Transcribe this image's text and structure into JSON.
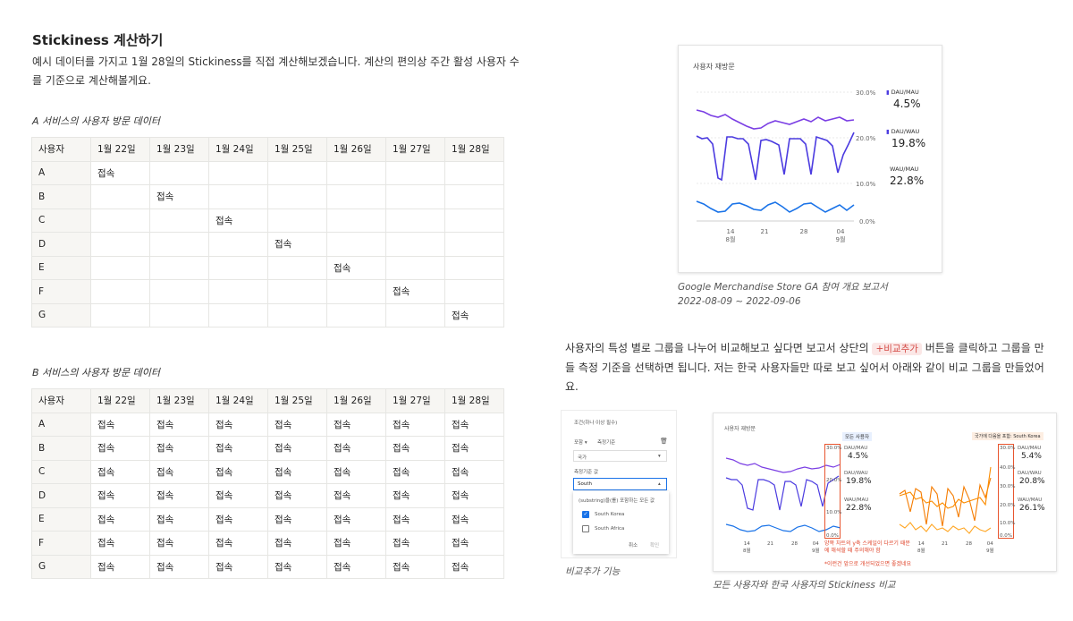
{
  "heading": "Stickiness 계산하기",
  "intro": "예시 데이터를 가지고 1월 28일의 Stickiness를 직접 계산해보겠습니다. 계산의 편의상 주간 활성 사용자 수를 기준으로 계산해볼게요.",
  "table_a": {
    "caption": "A 서비스의 사용자 방문 데이터",
    "headers": [
      "사용자",
      "1월 22일",
      "1월 23일",
      "1월 24일",
      "1월 25일",
      "1월 26일",
      "1월 27일",
      "1월 28일"
    ],
    "rows": [
      [
        "A",
        "접속",
        "",
        "",
        "",
        "",
        "",
        ""
      ],
      [
        "B",
        "",
        "접속",
        "",
        "",
        "",
        "",
        ""
      ],
      [
        "C",
        "",
        "",
        "접속",
        "",
        "",
        "",
        ""
      ],
      [
        "D",
        "",
        "",
        "",
        "접속",
        "",
        "",
        ""
      ],
      [
        "E",
        "",
        "",
        "",
        "",
        "접속",
        "",
        ""
      ],
      [
        "F",
        "",
        "",
        "",
        "",
        "",
        "접속",
        ""
      ],
      [
        "G",
        "",
        "",
        "",
        "",
        "",
        "",
        "접속"
      ]
    ]
  },
  "table_b": {
    "caption": "B 서비스의 사용자 방문 데이터",
    "headers": [
      "사용자",
      "1월 22일",
      "1월 23일",
      "1월 24일",
      "1월 25일",
      "1월 26일",
      "1월 27일",
      "1월 28일"
    ],
    "rows": [
      [
        "A",
        "접속",
        "접속",
        "접속",
        "접속",
        "접속",
        "접속",
        "접속"
      ],
      [
        "B",
        "접속",
        "접속",
        "접속",
        "접속",
        "접속",
        "접속",
        "접속"
      ],
      [
        "C",
        "접속",
        "접속",
        "접속",
        "접속",
        "접속",
        "접속",
        "접속"
      ],
      [
        "D",
        "접속",
        "접속",
        "접속",
        "접속",
        "접속",
        "접속",
        "접속"
      ],
      [
        "E",
        "접속",
        "접속",
        "접속",
        "접속",
        "접속",
        "접속",
        "접속"
      ],
      [
        "F",
        "접속",
        "접속",
        "접속",
        "접속",
        "접속",
        "접속",
        "접속"
      ],
      [
        "G",
        "접속",
        "접속",
        "접속",
        "접속",
        "접속",
        "접속",
        "접속"
      ]
    ]
  },
  "ga_card": {
    "title": "사용자 재방문",
    "y_ticks": [
      "30.0%",
      "20.0%",
      "10.0%",
      "0.0%"
    ],
    "x_ticks": [
      {
        "top": "14",
        "bottom": "8월"
      },
      {
        "top": "21",
        "bottom": ""
      },
      {
        "top": "28",
        "bottom": ""
      },
      {
        "top": "04",
        "bottom": "9월"
      }
    ],
    "metrics": [
      {
        "label": "DAU/MAU",
        "value": "4.5%"
      },
      {
        "label": "DAU/WAU",
        "value": "19.8%"
      },
      {
        "label": "WAU/MAU",
        "value": "22.8%"
      }
    ]
  },
  "ga_caption": [
    "Google Merchandise Store GA 참여 개요 보고서",
    "2022-08-09 ~ 2022-09-06"
  ],
  "paragraph": {
    "before": "사용자의 특성 별로 그룹을 나누어 비교해보고 싶다면 보고서 상단의 ",
    "chip": "+비교추가",
    "after": " 버튼을 클릭하고 그룹을 만들 측정 기준을 선택하면 됩니다. 저는 한국 사용자들만 따로 보고 싶어서 아래와 같이 비교 그룹을 만들었어요."
  },
  "dialog": {
    "header": "조건(하나 이상 필수)",
    "include": "포함",
    "dimension_label": "측정기준",
    "dimension_value": "국가",
    "value_label": "측정기준 값",
    "search_value": "South",
    "option_all": "(substring)을(를) 포함하는 모든 값",
    "options": [
      {
        "label": "South Korea",
        "checked": true
      },
      {
        "label": "South Africa",
        "checked": false
      }
    ],
    "cancel": "취소",
    "confirm": "확인"
  },
  "dialog_caption": "비교추가 기능",
  "compare_card": {
    "title": "사용자 재방문",
    "badge_all": "모든 사용자",
    "badge_kr": "국가에 다음을 포함: South Korea",
    "left_metrics": [
      {
        "label": "DAU/MAU",
        "value": "4.5%"
      },
      {
        "label": "DAU/WAU",
        "value": "19.8%"
      },
      {
        "label": "WAU/MAU",
        "value": "22.8%"
      }
    ],
    "right_metrics": [
      {
        "label": "DAU/MAU",
        "value": "5.4%"
      },
      {
        "label": "DAU/WAU",
        "value": "20.8%"
      },
      {
        "label": "WAU/MAU",
        "value": "26.1%"
      }
    ],
    "left_y_ticks": [
      "30.0%",
      "20.0%",
      "10.0%",
      "0.0%"
    ],
    "right_y_ticks": [
      "30.0%",
      "40.0%",
      "30.0%",
      "20.0%",
      "10.0%",
      "0.0%"
    ],
    "x_ticks": [
      {
        "top": "14",
        "bottom": "8월"
      },
      {
        "top": "21",
        "bottom": ""
      },
      {
        "top": "28",
        "bottom": ""
      },
      {
        "top": "04",
        "bottom": "9월"
      }
    ],
    "note": "양쪽 차트의 y축 스케일이 다르기 때문에 해석할 때 주의해야 함",
    "note2": "*이런건 앞으로 개선되었으면 좋겠네요"
  },
  "compare_caption": "모든 사용자와 한국 사용자의 Stickiness 비교",
  "colors": {
    "purple": "#7b3fe4",
    "indigo": "#4b3be0",
    "blue": "#1a73e8",
    "orange": "#f57c00",
    "red": "#e8552f"
  }
}
